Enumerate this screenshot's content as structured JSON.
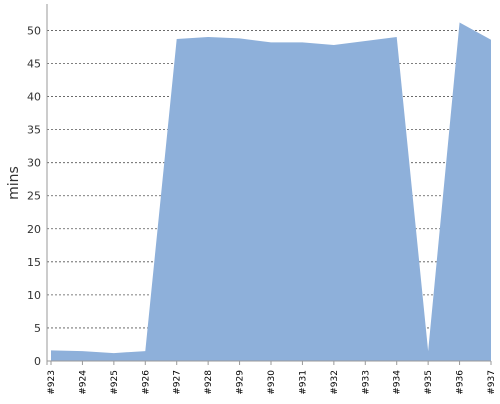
{
  "chart_data": {
    "type": "area",
    "categories": [
      "#923",
      "#924",
      "#925",
      "#926",
      "#927",
      "#928",
      "#929",
      "#930",
      "#931",
      "#932",
      "#933",
      "#934",
      "#935",
      "#936",
      "#937"
    ],
    "values": [
      1.6,
      1.5,
      1.2,
      1.5,
      48.7,
      49.0,
      48.8,
      48.2,
      48.2,
      47.8,
      48.4,
      49.0,
      1.5,
      51.2,
      48.6
    ],
    "title": "",
    "xlabel": "",
    "ylabel": "mins",
    "ylim": [
      0,
      54
    ],
    "yticks": [
      0,
      5,
      10,
      15,
      20,
      25,
      30,
      35,
      40,
      45,
      50
    ],
    "grid": true,
    "grid_style": "dashed",
    "colors": {
      "fill": "#8eb0da",
      "grid": "#555555",
      "axis": "#999999",
      "text": "#333333"
    }
  }
}
